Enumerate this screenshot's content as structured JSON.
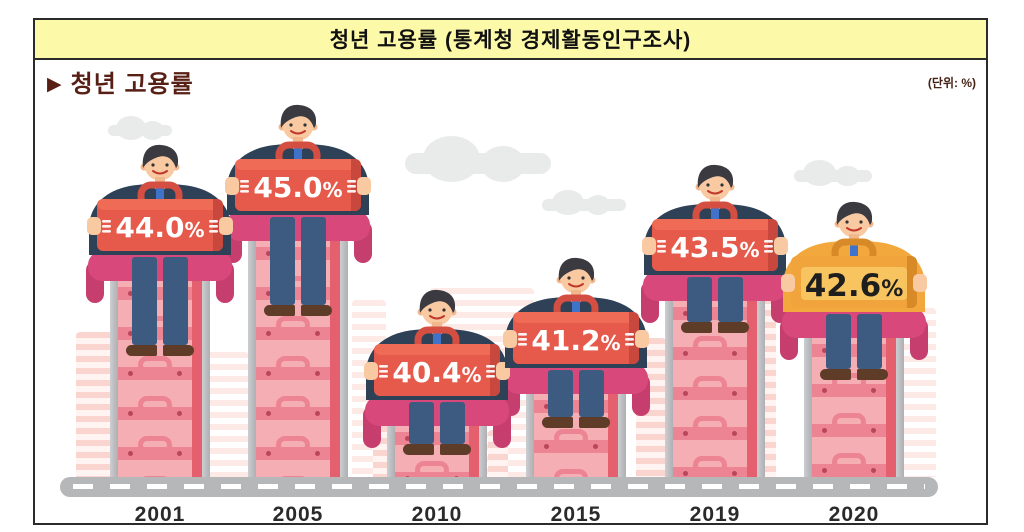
{
  "header": {
    "title": "청년 고용률 (통계청 경제활동인구조사)"
  },
  "subheader": {
    "marker": "▶",
    "title": "청년 고용률",
    "unit_label": "(단위: %)"
  },
  "chart_data": {
    "type": "bar",
    "title": "청년 고용률",
    "source": "통계청 경제활동인구조사",
    "unit": "%",
    "categories": [
      "2001",
      "2005",
      "2010",
      "2015",
      "2019",
      "2020"
    ],
    "values": [
      44.0,
      45.0,
      40.4,
      41.2,
      43.5,
      42.6
    ],
    "value_labels": [
      "44.0%",
      "45.0%",
      "40.4%",
      "41.2%",
      "43.5%",
      "42.6%"
    ],
    "highlight_index": 5,
    "ylim": [
      39,
      46
    ],
    "legend": "none",
    "grid": "off",
    "colors": {
      "briefcase_red": "#e65a4c",
      "briefcase_highlight": "#f2a43c",
      "stack_pink": "#f5aeb4",
      "stack_band": "#ec8494",
      "chair_magenta": "#d8487b",
      "suit_navy": "#2e4156",
      "highlight_jacket": "#f3a83d",
      "road_gray": "#b6b7b9",
      "header_yellow": "#fcf9a9",
      "section_title_maroon": "#581f15",
      "label_on_red": "#ffffff",
      "label_on_highlight": "#1e1e1e"
    }
  }
}
